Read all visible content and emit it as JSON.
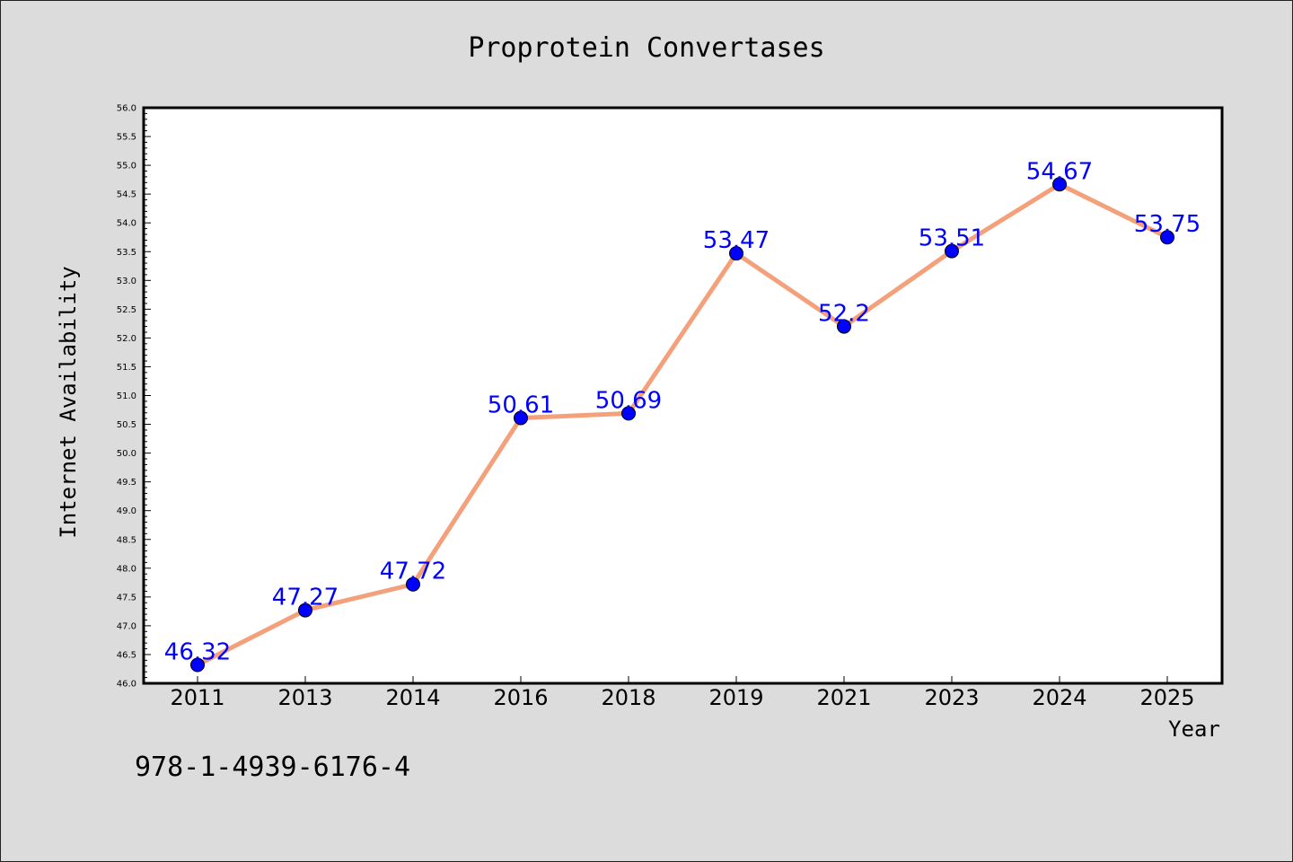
{
  "chart_data": {
    "type": "line",
    "title": "Proprotein Convertases",
    "xlabel": "Year",
    "ylabel": "Internet Availability",
    "categories": [
      "2011",
      "2013",
      "2014",
      "2016",
      "2018",
      "2019",
      "2021",
      "2023",
      "2024",
      "2025"
    ],
    "values": [
      46.32,
      47.27,
      47.72,
      50.61,
      50.69,
      53.47,
      52.2,
      53.51,
      54.67,
      53.75
    ],
    "data_labels": [
      "46.32",
      "47.27",
      "47.72",
      "50.61",
      "50.69",
      "53.47",
      "52.2",
      "53.51",
      "54.67",
      "53.75"
    ],
    "ylim": [
      46.0,
      56.0
    ],
    "yticks": [
      "46.0",
      "46.5",
      "47.0",
      "47.5",
      "48.0",
      "48.5",
      "49.0",
      "49.5",
      "50.0",
      "50.5",
      "51.0",
      "51.5",
      "52.0",
      "52.5",
      "53.0",
      "53.5",
      "54.0",
      "54.5",
      "55.0",
      "55.5",
      "56.0"
    ],
    "grid": false,
    "line_color": "#f4a07a",
    "marker_color": "#0000ff"
  },
  "footer": {
    "isbn": "978-1-4939-6176-4"
  }
}
